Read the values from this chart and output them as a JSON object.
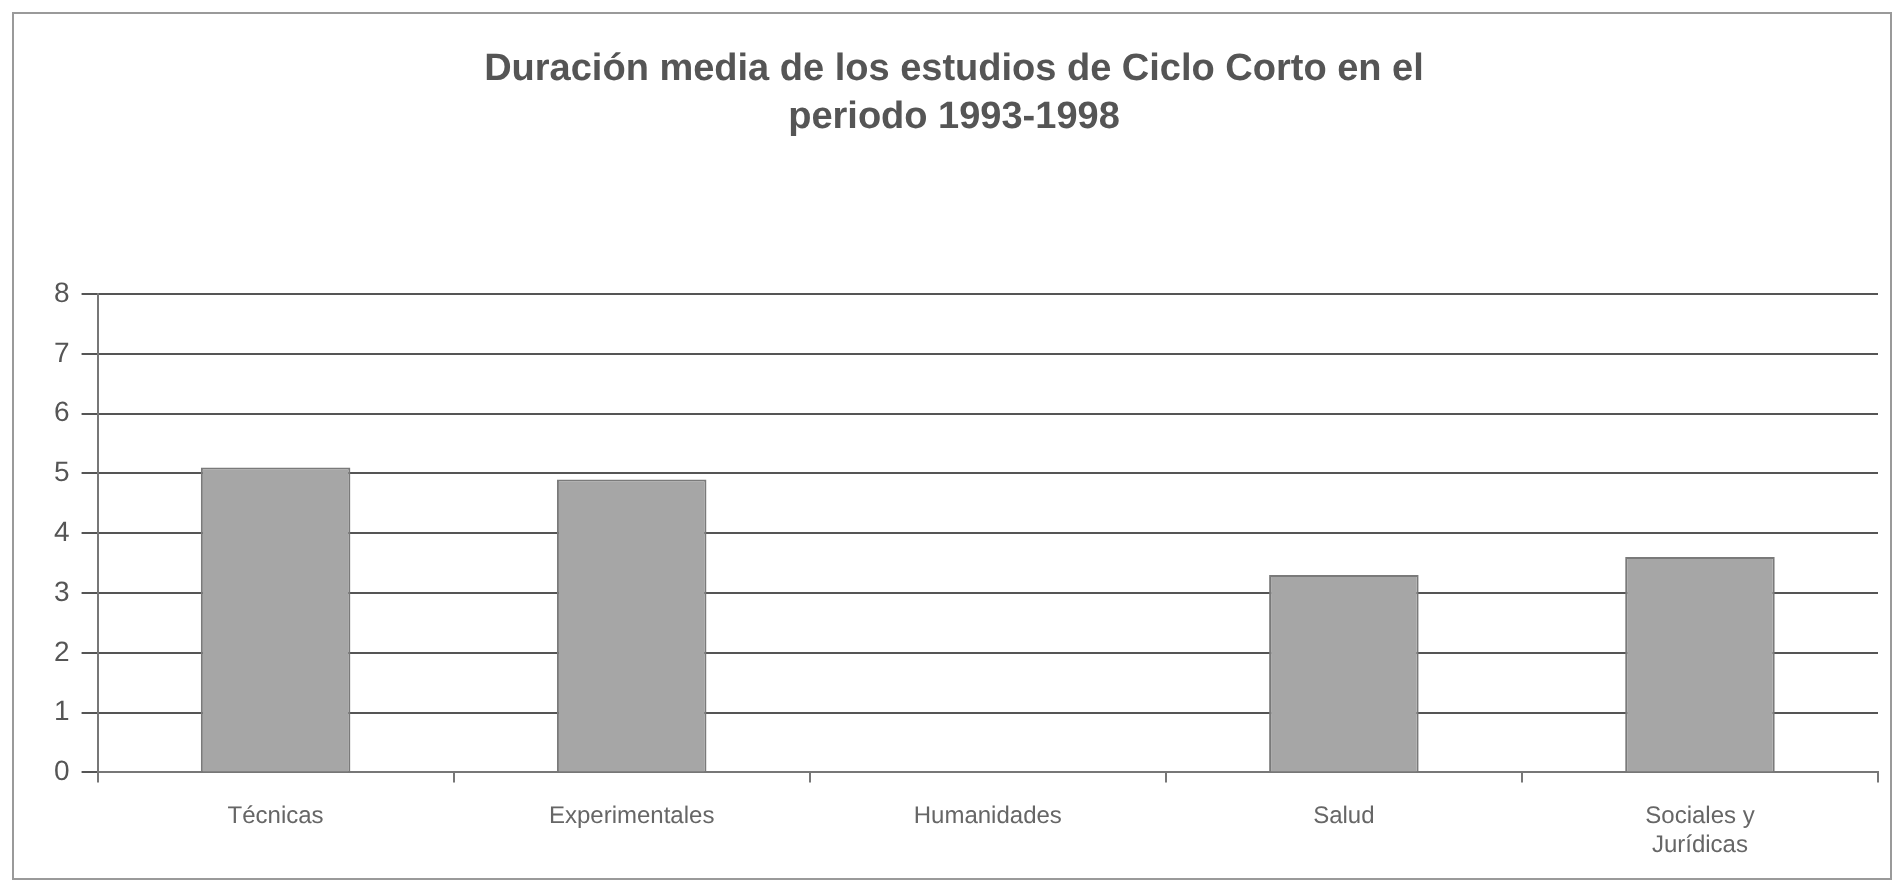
{
  "chart_data": {
    "type": "bar",
    "title": "Duración media de los estudios de Ciclo Corto en el periodo 1993-1998",
    "categories": [
      "Técnicas",
      "Experimentales",
      "Humanidades",
      "Salud",
      "Sociales y Jurídicas"
    ],
    "values": [
      5.1,
      4.9,
      null,
      3.3,
      3.6
    ],
    "color": "#a6a6a6",
    "ylim": [
      0,
      8
    ],
    "yticks": [
      0,
      1,
      2,
      3,
      4,
      5,
      6,
      7,
      8
    ],
    "grid": "y",
    "legend": false
  }
}
